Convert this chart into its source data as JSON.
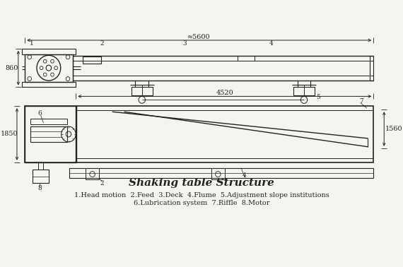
{
  "title": "Shaking table Structure",
  "legend_line1": "1.Head motion  2.Feed  3.Deck  4.Flume  5.Adjustment slope institutions",
  "legend_line2": "6.Lubrication system  7.Riffle  8.Motor",
  "bg_color": "#f5f5f0",
  "line_color": "#222222",
  "dim_5600": "≈5600",
  "dim_860": "860",
  "dim_4520": "4520",
  "dim_1850": "1850",
  "dim_1560": "1560",
  "labels": {
    "1": "1",
    "2": "2",
    "3": "3",
    "4": "4",
    "5": "5",
    "6": "6",
    "7": "7",
    "8": "8"
  }
}
